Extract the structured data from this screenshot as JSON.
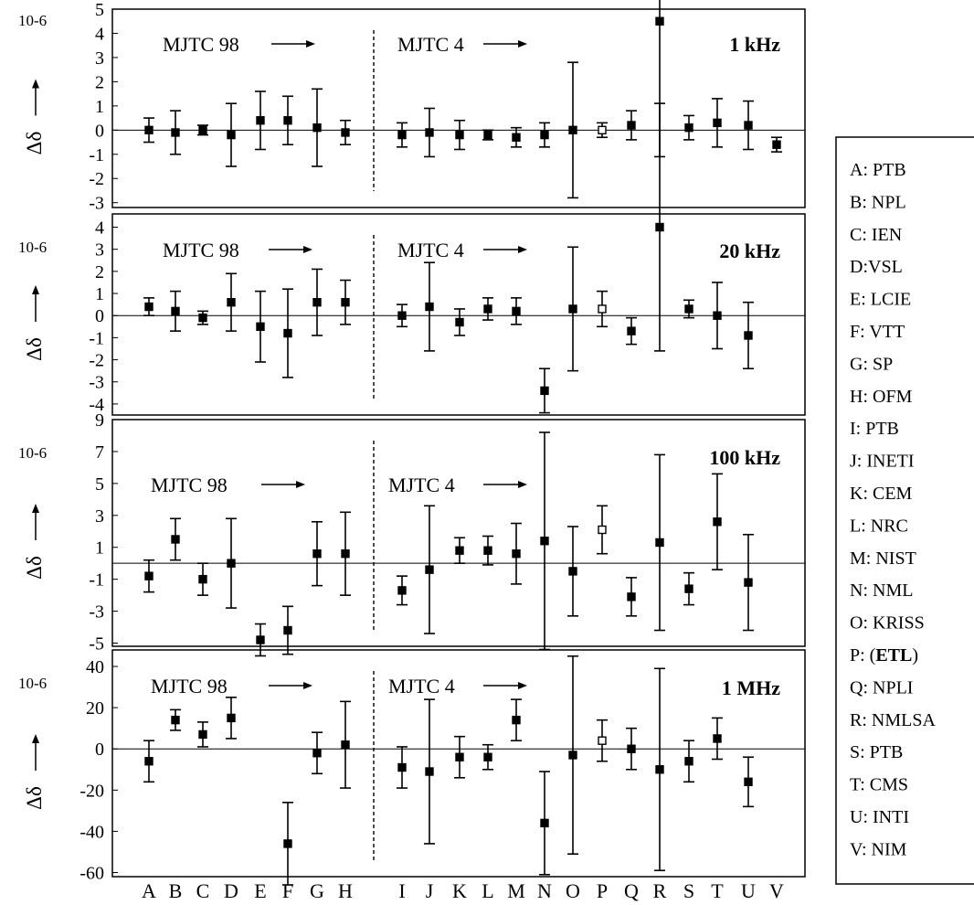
{
  "y_unit": "10-6",
  "y_symbol": "Δδ",
  "left_group_label": "MJTC 98",
  "right_group_label": "MJTC 4",
  "legend": [
    {
      "code": "A",
      "text": "A: PTB"
    },
    {
      "code": "B",
      "text": "B: NPL"
    },
    {
      "code": "C",
      "text": "C: IEN"
    },
    {
      "code": "D",
      "text": "D:VSL"
    },
    {
      "code": "E",
      "text": "E: LCIE"
    },
    {
      "code": "F",
      "text": "F: VTT"
    },
    {
      "code": "G",
      "text": "G: SP"
    },
    {
      "code": "H",
      "text": "H: OFM"
    },
    {
      "code": "I",
      "text": "I: PTB"
    },
    {
      "code": "J",
      "text": "J: INETI"
    },
    {
      "code": "K",
      "text": "K: CEM"
    },
    {
      "code": "L",
      "text": "L: NRC"
    },
    {
      "code": "M",
      "text": "M: NIST"
    },
    {
      "code": "N",
      "text": "N: NML"
    },
    {
      "code": "O",
      "text": "O: KRISS"
    },
    {
      "code": "P",
      "text": "P: (ETL)"
    },
    {
      "code": "Q",
      "text": "Q: NPLI"
    },
    {
      "code": "R",
      "text": "R: NMLSA"
    },
    {
      "code": "S",
      "text": "S: PTB"
    },
    {
      "code": "T",
      "text": "T: CMS"
    },
    {
      "code": "U",
      "text": "U: INTI"
    },
    {
      "code": "V",
      "text": "V: NIM"
    }
  ],
  "chart_data": [
    {
      "type": "scatter",
      "title": "1 kHz",
      "ylim": [
        -3.2,
        5
      ],
      "yticks": [
        5,
        4,
        3,
        2,
        1,
        0,
        -1,
        -2,
        -3
      ],
      "categories": [
        "A",
        "B",
        "C",
        "D",
        "E",
        "F",
        "G",
        "H",
        "I",
        "J",
        "K",
        "L",
        "M",
        "N",
        "O",
        "P",
        "Q",
        "R",
        "S",
        "T",
        "U",
        "V"
      ],
      "values": [
        0.0,
        -0.1,
        0.0,
        -0.2,
        0.4,
        0.4,
        0.1,
        -0.1,
        -0.2,
        -0.1,
        -0.2,
        -0.2,
        -0.3,
        -0.2,
        0.0,
        0.0,
        0.2,
        4.5,
        0.1,
        0.3,
        0.2,
        -0.6
      ],
      "errors": [
        0.5,
        0.9,
        0.2,
        1.3,
        1.2,
        1.0,
        1.6,
        0.5,
        0.5,
        1.0,
        0.6,
        0.2,
        0.4,
        0.5,
        2.8,
        0.3,
        0.6,
        5.6,
        0.5,
        1.0,
        1.0,
        0.3
      ],
      "open_markers": [
        "P"
      ]
    },
    {
      "type": "scatter",
      "title": "20 kHz",
      "ylim": [
        -4.5,
        4.6
      ],
      "yticks": [
        4,
        3,
        2,
        1,
        0,
        -1,
        -2,
        -3,
        -4
      ],
      "categories": [
        "A",
        "B",
        "C",
        "D",
        "E",
        "F",
        "G",
        "H",
        "I",
        "J",
        "K",
        "L",
        "M",
        "N",
        "O",
        "P",
        "Q",
        "R",
        "S",
        "T",
        "U",
        "V"
      ],
      "values": [
        0.4,
        0.2,
        -0.1,
        0.6,
        -0.5,
        -0.8,
        0.6,
        0.6,
        0.0,
        0.4,
        -0.3,
        0.3,
        0.2,
        -3.4,
        0.3,
        0.3,
        -0.7,
        4.0,
        0.3,
        0.0,
        -0.9,
        null
      ],
      "errors": [
        0.4,
        0.9,
        0.3,
        1.3,
        1.6,
        2.0,
        1.5,
        1.0,
        0.5,
        2.0,
        0.6,
        0.5,
        0.6,
        1.0,
        2.8,
        0.8,
        0.6,
        5.6,
        0.4,
        1.5,
        1.5,
        null
      ],
      "open_markers": [
        "P"
      ]
    },
    {
      "type": "scatter",
      "title": "100 kHz",
      "ylim": [
        -5.2,
        9
      ],
      "yticks": [
        9,
        7,
        5,
        3,
        1,
        -1,
        -3,
        -5
      ],
      "categories": [
        "A",
        "B",
        "C",
        "D",
        "E",
        "F",
        "G",
        "H",
        "I",
        "J",
        "K",
        "L",
        "M",
        "N",
        "O",
        "P",
        "Q",
        "R",
        "S",
        "T",
        "U",
        "V"
      ],
      "values": [
        -0.8,
        1.5,
        -1.0,
        0.0,
        -4.8,
        -4.2,
        0.6,
        0.6,
        -1.7,
        -0.4,
        0.8,
        0.8,
        0.6,
        1.4,
        -0.5,
        2.1,
        -2.1,
        1.3,
        -1.6,
        2.6,
        -1.2,
        null
      ],
      "errors": [
        1.0,
        1.3,
        1.0,
        2.8,
        1.0,
        1.5,
        2.0,
        2.6,
        0.9,
        4.0,
        0.8,
        0.9,
        1.9,
        6.8,
        2.8,
        1.5,
        1.2,
        5.5,
        1.0,
        3.0,
        3.0,
        null
      ],
      "open_markers": [
        "P"
      ]
    },
    {
      "type": "scatter",
      "title": "1 MHz",
      "ylim": [
        -62,
        48
      ],
      "yticks": [
        40,
        20,
        0,
        -20,
        -40,
        -60
      ],
      "categories": [
        "A",
        "B",
        "C",
        "D",
        "E",
        "F",
        "G",
        "H",
        "I",
        "J",
        "K",
        "L",
        "M",
        "N",
        "O",
        "P",
        "Q",
        "R",
        "S",
        "T",
        "U",
        "V"
      ],
      "values": [
        -6,
        14,
        7,
        15,
        null,
        -46,
        -2,
        2,
        -9,
        -11,
        -4,
        -4,
        14,
        -36,
        -3,
        4,
        0,
        -10,
        -6,
        5,
        -16,
        null
      ],
      "errors": [
        10,
        5,
        6,
        10,
        null,
        20,
        10,
        21,
        10,
        35,
        10,
        6,
        10,
        25,
        48,
        10,
        10,
        49,
        10,
        10,
        12,
        null
      ],
      "open_markers": [
        "P"
      ]
    }
  ]
}
